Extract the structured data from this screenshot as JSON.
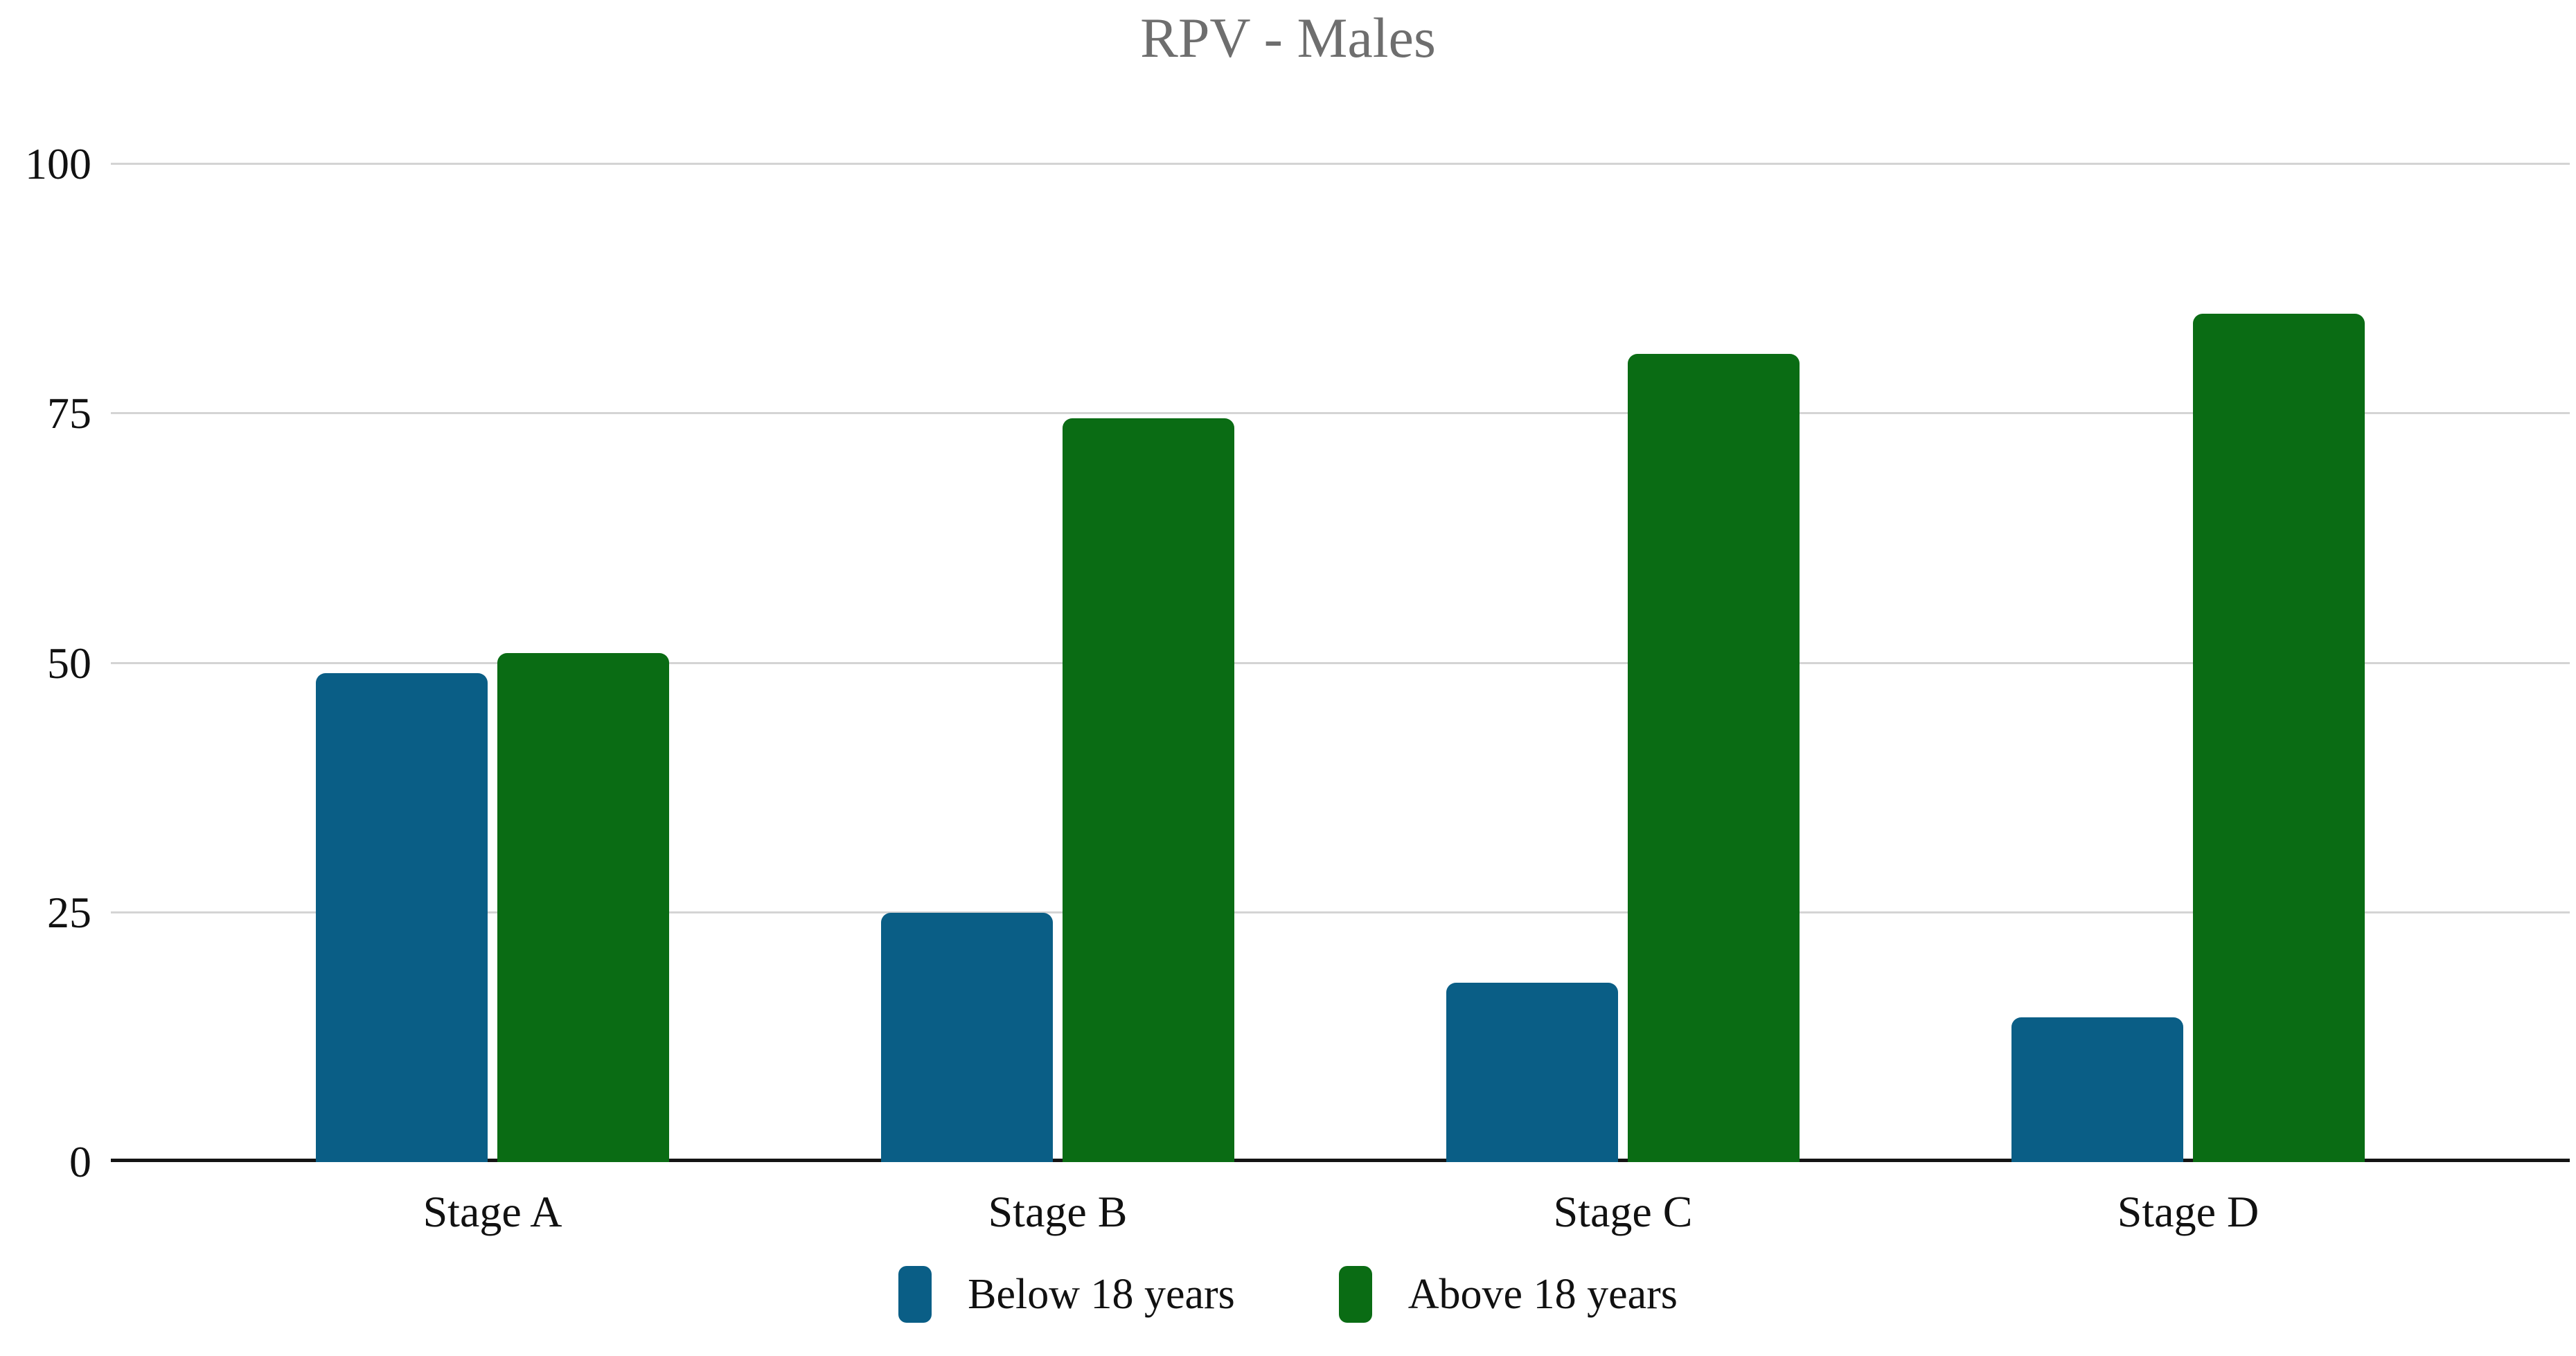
{
  "chart_data": {
    "type": "bar",
    "title": "RPV - Males",
    "categories": [
      "Stage A",
      "Stage B",
      "Stage C",
      "Stage D"
    ],
    "series": [
      {
        "name": "Below 18 years",
        "color": "#0A5E86",
        "values": [
          49,
          25,
          18,
          14.5
        ]
      },
      {
        "name": "Above 18 years",
        "color": "#0A6C14",
        "values": [
          51,
          74.5,
          81,
          85
        ]
      }
    ],
    "xlabel": "",
    "ylabel": "",
    "ylim": [
      0,
      100
    ],
    "yticks": [
      0,
      25,
      50,
      75,
      100
    ],
    "grid": true,
    "legend_position": "bottom"
  },
  "colors": {
    "background": "#FFFFFF",
    "title_text": "#6E6E6E",
    "tick_text": "#111111",
    "gridline": "#D4D4D4",
    "axis_line": "#141414",
    "series_below_18": "#0A5E86",
    "series_above_18": "#0A6C14"
  }
}
